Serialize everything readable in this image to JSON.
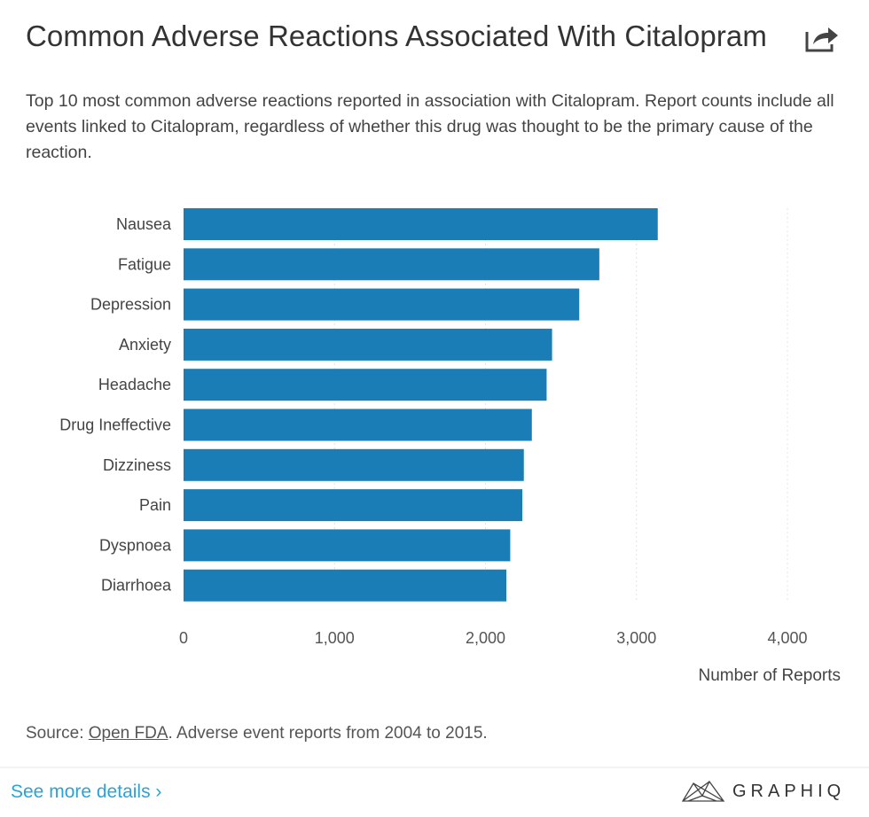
{
  "header": {
    "title": "Common Adverse Reactions Associated With Citalopram",
    "share_icon": "share-arrow-icon"
  },
  "description": "Top 10 most common adverse reactions reported in association with Citalopram. Report counts include all events linked to Citalopram, regardless of whether this drug was thought to be the primary cause of the reaction.",
  "chart_data": {
    "type": "bar",
    "orientation": "horizontal",
    "title": "",
    "xlabel": "Number of Reports",
    "ylabel": "",
    "categories": [
      "Nausea",
      "Fatigue",
      "Depression",
      "Anxiety",
      "Headache",
      "Drug Ineffective",
      "Dizziness",
      "Pain",
      "Dyspnoea",
      "Diarrhoea"
    ],
    "values": [
      3141,
      2754,
      2621,
      2441,
      2405,
      2307,
      2254,
      2244,
      2164,
      2138
    ],
    "xlim": [
      0,
      4000
    ],
    "xticks": [
      0,
      1000,
      2000,
      3000,
      4000
    ],
    "xtick_labels": [
      "0",
      "1,000",
      "2,000",
      "3,000",
      "4,000"
    ],
    "grid": "vertical dotted",
    "bar_color": "#1a7db5"
  },
  "footer": {
    "source_prefix": "Source: ",
    "source_link": "Open FDA",
    "source_suffix": ". Adverse event reports from 2004 to 2015.",
    "see_more": "See more details ›",
    "brand": "GRAPHIQ",
    "link_color": "#2aa3d6"
  }
}
